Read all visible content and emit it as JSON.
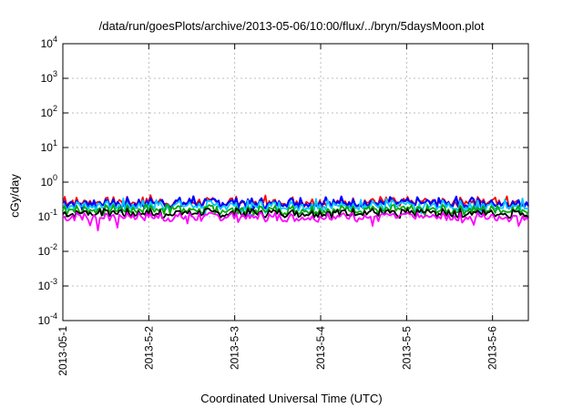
{
  "chart_data": {
    "type": "line",
    "title": "/data/run/goesPlots/archive/2013-05-06/10:00/flux/../bryn/5daysMoon.plot",
    "xlabel": "Coordinated Universal Time (UTC)",
    "ylabel": "cGy/day",
    "yscale": "log",
    "ylim": [
      0.0001,
      10000
    ],
    "y_ticks": [
      {
        "exp": "-4",
        "value": 0.0001
      },
      {
        "exp": "-3",
        "value": 0.001
      },
      {
        "exp": "-2",
        "value": 0.01
      },
      {
        "exp": "-1",
        "value": 0.1
      },
      {
        "exp": "0",
        "value": 1
      },
      {
        "exp": "1",
        "value": 10
      },
      {
        "exp": "2",
        "value": 100
      },
      {
        "exp": "3",
        "value": 1000
      },
      {
        "exp": "4",
        "value": 10000
      }
    ],
    "y_tick_base": "10",
    "xlim": [
      "2013-05-01T00:00",
      "2013-05-06T10:00"
    ],
    "x_ticks": [
      {
        "label": "2013-05-1",
        "date": "2013-05-01"
      },
      {
        "label": "2013-5-2",
        "date": "2013-05-02"
      },
      {
        "label": "2013-5-3",
        "date": "2013-05-03"
      },
      {
        "label": "2013-5-4",
        "date": "2013-05-04"
      },
      {
        "label": "2013-5-5",
        "date": "2013-05-05"
      },
      {
        "label": "2013-5-6",
        "date": "2013-05-06"
      }
    ],
    "grid": true,
    "series": [
      {
        "color": "#ff0000",
        "base": 0.27,
        "values_range": [
          0.18,
          0.42
        ]
      },
      {
        "color": "#0000ff",
        "base": 0.25,
        "values_range": [
          0.12,
          0.4
        ]
      },
      {
        "color": "#00c8ff",
        "base": 0.21,
        "values_range": [
          0.1,
          0.35
        ]
      },
      {
        "color": "#00aa00",
        "base": 0.16,
        "values_range": [
          0.1,
          0.22
        ]
      },
      {
        "color": "#000000",
        "base": 0.13,
        "values_range": [
          0.09,
          0.17
        ]
      },
      {
        "color": "#ff00ff",
        "base": 0.1,
        "values_range": [
          0.035,
          0.13
        ]
      }
    ]
  }
}
